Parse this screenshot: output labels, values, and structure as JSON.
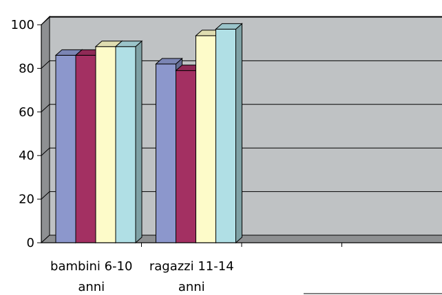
{
  "chart_data": {
    "type": "bar",
    "style": "3d-clustered-column",
    "categories": [
      "bambini 6-10 anni",
      "ragazzi 11-14 anni",
      "",
      ""
    ],
    "series": [
      {
        "values": [
          86,
          82,
          null,
          null
        ],
        "color": "#8c97cc"
      },
      {
        "values": [
          86,
          79,
          null,
          null
        ],
        "color": "#a33062"
      },
      {
        "values": [
          90,
          95,
          null,
          null
        ],
        "color": "#fdfbc9"
      },
      {
        "values": [
          90,
          98,
          null,
          null
        ],
        "color": "#b0dfe5"
      }
    ],
    "y_ticks": [
      "0",
      "20",
      "40",
      "60",
      "80",
      "100"
    ],
    "ylim": [
      0,
      100
    ],
    "grid": true,
    "wall_color": "#bfc2c4",
    "floor_color": "#8e9092",
    "title": "",
    "xlabel": "",
    "ylabel": ""
  }
}
